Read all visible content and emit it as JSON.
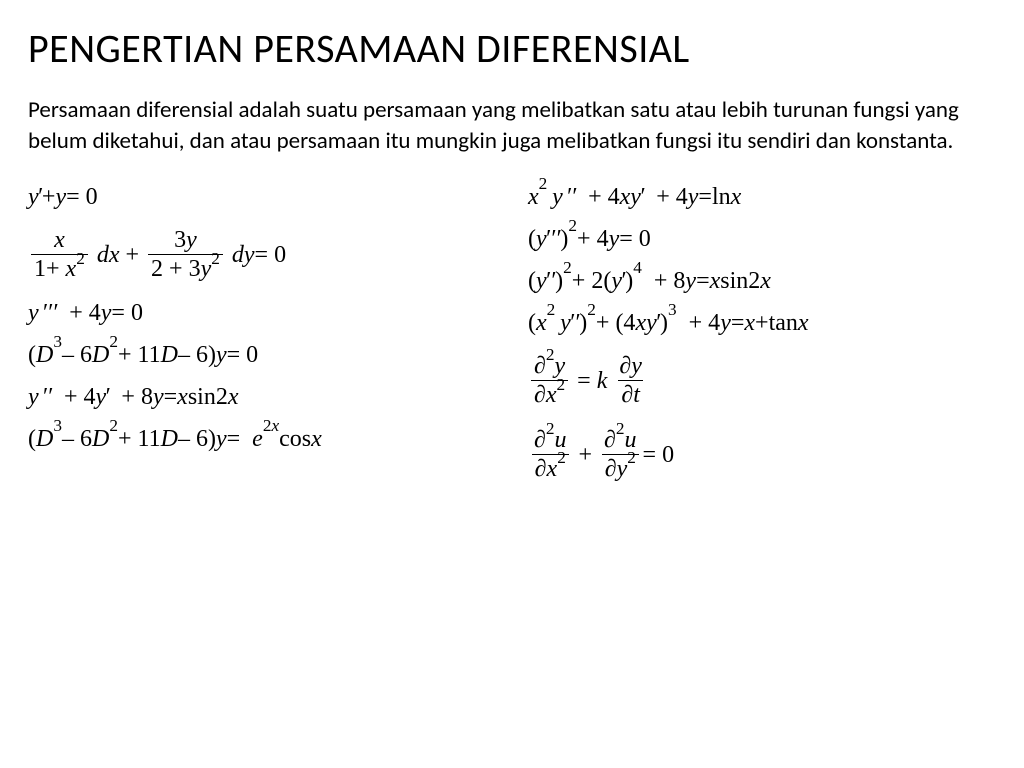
{
  "colors": {
    "background": "#ffffff",
    "text": "#000000",
    "rule": "#000000"
  },
  "typography": {
    "title_font": "Calibri",
    "title_size_pt": 40,
    "body_font": "Calibri",
    "body_size_pt": 23,
    "math_font": "Times New Roman",
    "math_size_pt": 24
  },
  "title": "PENGERTIAN PERSAMAAN DIFERENSIAL",
  "body": "Persamaan diferensial adalah suatu persamaan yang melibatkan satu atau lebih turunan fungsi yang belum diketahui, dan atau persamaan itu mungkin juga melibatkan fungsi itu sendiri dan konstanta.",
  "equations": {
    "left": [
      {
        "id": "L1",
        "latex": "y' + y = 0"
      },
      {
        "id": "L2",
        "latex": "\\frac{x}{1+x^{2}}\\,dx + \\frac{3y}{2+3y^{2}}\\,dy = 0"
      },
      {
        "id": "L3",
        "latex": "y''' + 4y = 0"
      },
      {
        "id": "L4",
        "latex": "(D^{3} - 6D^{2} + 11D - 6)y = 0"
      },
      {
        "id": "L5",
        "latex": "y'' + 4y' + 8y = x \\sin 2x"
      },
      {
        "id": "L6",
        "latex": "(D^{3} - 6D^{2} + 11D - 6)y = e^{2x}\\cos x"
      }
    ],
    "right": [
      {
        "id": "R1",
        "latex": "x^{2} y'' + 4xy' + 4y = \\ln x"
      },
      {
        "id": "R2",
        "latex": "(y''')^{2} + 4y = 0"
      },
      {
        "id": "R3",
        "latex": "(y'')^{2} + 2(y')^{4} + 8y = x \\sin 2x"
      },
      {
        "id": "R4",
        "latex": "(x^{2} y'')^{2} + (4xy')^{3} + 4y = x + \\tan x"
      },
      {
        "id": "R5",
        "latex": "\\frac{\\partial^{2} y}{\\partial x^{2}} = k\\,\\frac{\\partial y}{\\partial t}"
      },
      {
        "id": "R6",
        "latex": "\\frac{\\partial^{2} u}{\\partial x^{2}} + \\frac{\\partial^{2} u}{\\partial y^{2}} = 0"
      }
    ]
  },
  "strings": {
    "dx": "dx",
    "dy": "dy",
    "ln": "ln",
    "sin": "sin",
    "cos": "cos",
    "tan": "tan",
    "eq0": " = 0",
    "plus": " + ",
    "minus": " – "
  }
}
